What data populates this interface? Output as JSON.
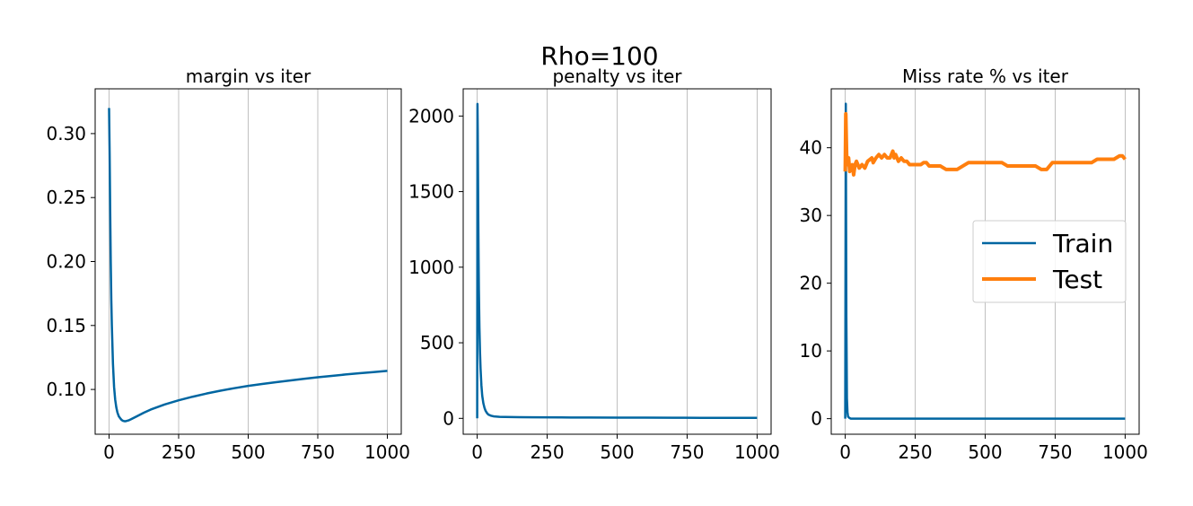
{
  "figure": {
    "title": "Rho=100"
  },
  "chart_data": [
    {
      "type": "line",
      "title": "margin vs iter",
      "xlabel": "",
      "ylabel": "",
      "xlim": [
        -50,
        1050
      ],
      "ylim": [
        0.065,
        0.335
      ],
      "xticks": [
        0,
        250,
        500,
        750,
        1000
      ],
      "xtick_labels": [
        "0",
        "250",
        "500",
        "750",
        "1000"
      ],
      "yticks": [
        0.1,
        0.15,
        0.2,
        0.25,
        0.3
      ],
      "ytick_labels": [
        "0.10",
        "0.15",
        "0.20",
        "0.25",
        "0.30"
      ],
      "grid": "x",
      "series": [
        {
          "color": "#0066a1",
          "x": [
            0,
            2,
            4,
            6,
            8,
            10,
            14,
            18,
            22,
            26,
            30,
            35,
            40,
            45,
            50,
            55,
            60,
            70,
            80,
            100,
            125,
            150,
            200,
            250,
            300,
            350,
            400,
            450,
            500,
            550,
            600,
            650,
            700,
            750,
            800,
            850,
            900,
            950,
            1000
          ],
          "y": [
            0.32,
            0.285,
            0.24,
            0.2,
            0.17,
            0.15,
            0.12,
            0.102,
            0.092,
            0.086,
            0.082,
            0.079,
            0.0775,
            0.0762,
            0.0755,
            0.0752,
            0.0752,
            0.0758,
            0.0768,
            0.079,
            0.0818,
            0.0843,
            0.0883,
            0.0915,
            0.0943,
            0.0968,
            0.099,
            0.101,
            0.1028,
            0.1043,
            0.1057,
            0.107,
            0.1083,
            0.1095,
            0.1106,
            0.1117,
            0.1127,
            0.1136,
            0.1145
          ]
        }
      ]
    },
    {
      "type": "line",
      "title": "penalty vs iter",
      "xlabel": "",
      "ylabel": "",
      "xlim": [
        -50,
        1050
      ],
      "ylim": [
        -105,
        2180
      ],
      "xticks": [
        0,
        250,
        500,
        750,
        1000
      ],
      "xtick_labels": [
        "0",
        "250",
        "500",
        "750",
        "1000"
      ],
      "yticks": [
        0,
        500,
        1000,
        1500,
        2000
      ],
      "ytick_labels": [
        "0",
        "500",
        "1000",
        "1500",
        "2000"
      ],
      "grid": "x",
      "series": [
        {
          "color": "#0066a1",
          "x": [
            0,
            1,
            2,
            3,
            4,
            5,
            6,
            8,
            10,
            12,
            15,
            18,
            22,
            26,
            30,
            35,
            40,
            50,
            60,
            80,
            100,
            150,
            200,
            300,
            400,
            500,
            600,
            700,
            800,
            900,
            1000
          ],
          "y": [
            0,
            2080,
            1900,
            1600,
            1300,
            1050,
            850,
            600,
            440,
            330,
            220,
            150,
            100,
            70,
            50,
            35,
            25,
            17,
            13,
            10,
            9,
            8,
            7,
            6,
            5.5,
            5,
            4.5,
            4,
            3.5,
            3,
            3
          ]
        }
      ]
    },
    {
      "type": "line",
      "title": "Miss rate % vs iter",
      "xlabel": "",
      "ylabel": "",
      "xlim": [
        -50,
        1050
      ],
      "ylim": [
        -2.3,
        48.7
      ],
      "xticks": [
        0,
        250,
        500,
        750,
        1000
      ],
      "xtick_labels": [
        "0",
        "250",
        "500",
        "750",
        "1000"
      ],
      "yticks": [
        0,
        10,
        20,
        30,
        40
      ],
      "ytick_labels": [
        "0",
        "10",
        "20",
        "30",
        "40"
      ],
      "grid": "x",
      "legend": "center-right",
      "series": [
        {
          "name": "Train",
          "color": "#0066a1",
          "width": 2.5,
          "x": [
            0,
            2,
            4,
            6,
            8,
            10,
            15,
            20,
            1000
          ],
          "y": [
            0,
            46.5,
            15,
            3,
            1,
            0.3,
            0.1,
            0,
            0
          ]
        },
        {
          "name": "Test",
          "color": "#ff7f0e",
          "width": 4,
          "x": [
            0,
            2,
            5,
            8,
            12,
            16,
            20,
            25,
            30,
            35,
            40,
            45,
            50,
            60,
            70,
            80,
            95,
            100,
            110,
            120,
            130,
            140,
            150,
            160,
            170,
            175,
            180,
            185,
            190,
            200,
            210,
            220,
            230,
            250,
            270,
            280,
            290,
            300,
            320,
            340,
            360,
            380,
            400,
            420,
            440,
            460,
            480,
            500,
            520,
            540,
            560,
            580,
            600,
            620,
            640,
            660,
            680,
            700,
            720,
            740,
            760,
            780,
            800,
            820,
            840,
            860,
            880,
            900,
            920,
            940,
            960,
            980,
            990,
            1000
          ],
          "y": [
            36.5,
            45,
            39,
            37.5,
            38.5,
            36.5,
            37,
            37.5,
            36,
            37.5,
            38,
            37.5,
            37,
            37.5,
            37,
            38,
            38.5,
            37.8,
            38.5,
            39,
            38.5,
            39,
            38.5,
            38.5,
            39.5,
            38.5,
            39,
            38.5,
            38,
            38.5,
            38,
            38,
            37.5,
            37.5,
            37.5,
            37.8,
            37.8,
            37.3,
            37.3,
            37.3,
            36.8,
            36.8,
            36.8,
            37.3,
            37.8,
            37.8,
            37.8,
            37.8,
            37.8,
            37.8,
            37.8,
            37.3,
            37.3,
            37.3,
            37.3,
            37.3,
            37.3,
            36.8,
            36.8,
            37.8,
            37.8,
            37.8,
            37.8,
            37.8,
            37.8,
            37.8,
            37.8,
            38.3,
            38.3,
            38.3,
            38.3,
            38.8,
            38.8,
            38.3
          ]
        }
      ]
    }
  ]
}
